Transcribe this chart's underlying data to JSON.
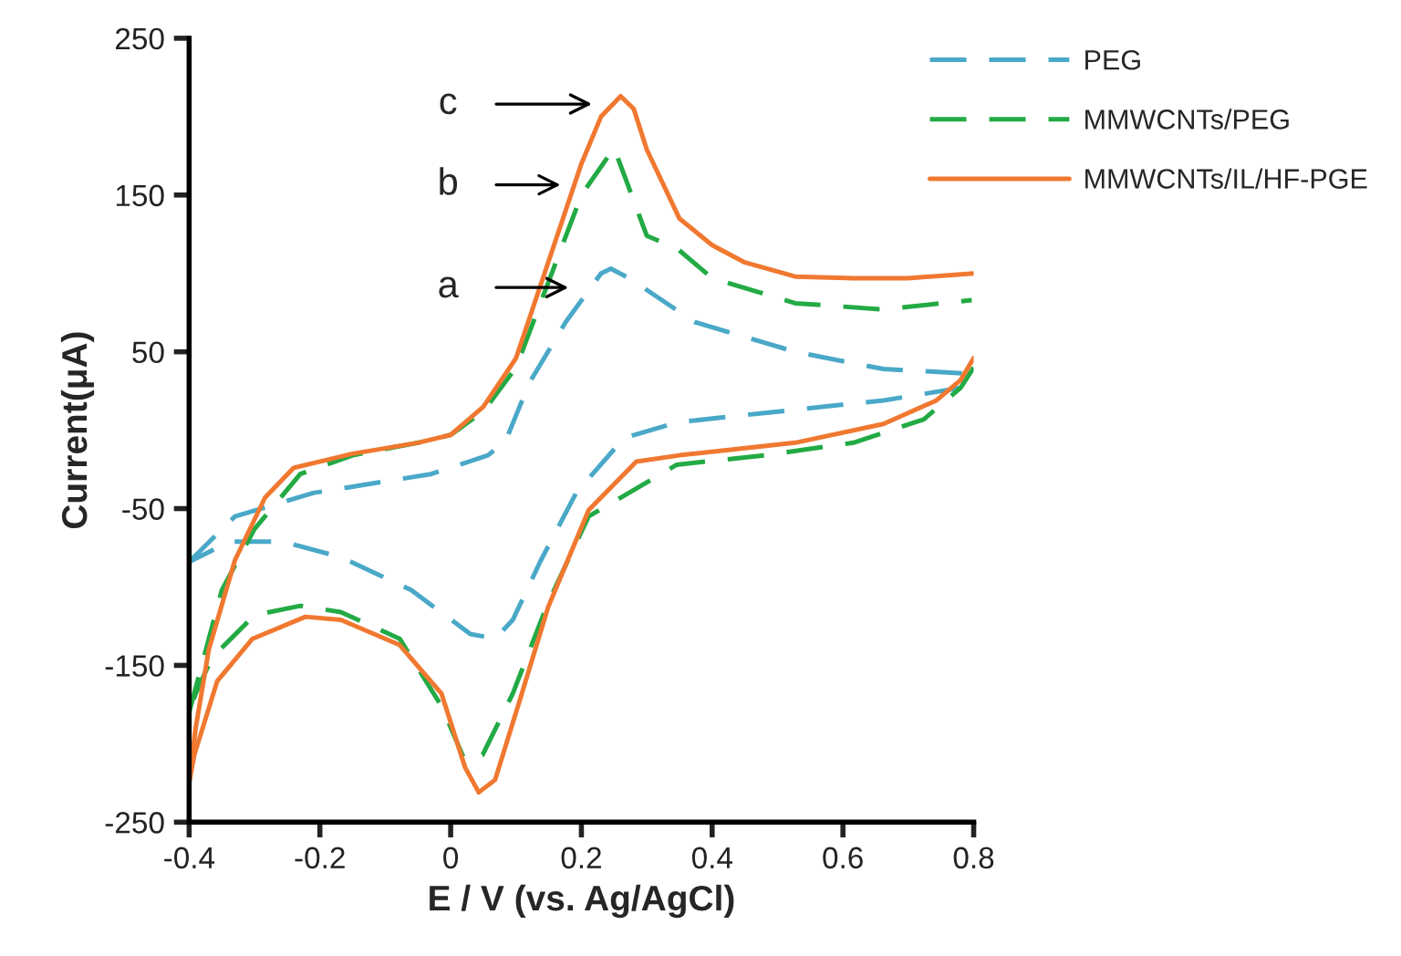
{
  "chart_data": {
    "type": "line",
    "xlabel": "E / V (vs. Ag/AgCl)",
    "ylabel": "Current(μA)",
    "xlim": [
      -0.4,
      0.8
    ],
    "xticks": [
      -0.4,
      -0.2,
      0,
      0.2,
      0.4,
      0.6,
      0.8
    ],
    "ylim": [
      -250,
      250
    ],
    "yticks": [
      -250,
      -150,
      -50,
      50,
      150,
      250
    ],
    "grid": false,
    "legend": "top right",
    "annotations": [
      "c",
      "b",
      "a"
    ],
    "series": [
      {
        "name": "PEG",
        "color": "#4aa8c8",
        "line_style": "dashed",
        "x": [
          -0.4,
          -0.33,
          -0.21,
          -0.03,
          0.057,
          0.084,
          0.12,
          0.176,
          0.23,
          0.245,
          0.273,
          0.373,
          0.527,
          0.662,
          0.797,
          0.8
        ],
        "values": [
          -84,
          -55,
          -40,
          -28,
          -16,
          -7,
          30,
          69,
          100,
          103,
          97,
          69,
          50,
          39,
          36,
          35
        ]
      },
      {
        "color": "#4aa8c8",
        "line_style": "dashed",
        "x": [
          0.78,
          0.662,
          0.48,
          0.346,
          0.265,
          0.192,
          0.138,
          0.095,
          0.068,
          0.03,
          -0.06,
          -0.168,
          -0.257,
          -0.338,
          -0.4
        ],
        "values": [
          27,
          19,
          11,
          5,
          -5,
          -40,
          -83,
          -121,
          -133,
          -130,
          -102,
          -81,
          -71,
          -71,
          -84
        ]
      },
      {
        "name": "MMWCNTs/PEG",
        "color": "#22aa44",
        "line_style": "dashed",
        "x": [
          -0.4,
          -0.35,
          -0.3,
          -0.23,
          -0.15,
          -0.05,
          0,
          0.05,
          0.1,
          0.15,
          0.2,
          0.25,
          0.3,
          0.346,
          0.4,
          0.527,
          0.662,
          0.797
        ],
        "values": [
          -180,
          -102,
          -63,
          -28,
          -16,
          -8,
          -3,
          12,
          40,
          95,
          150,
          180,
          124,
          116,
          97,
          81,
          77,
          83
        ]
      },
      {
        "color": "#22aa44",
        "line_style": "dashed",
        "x": [
          0.8,
          0.78,
          0.724,
          0.616,
          0.48,
          0.346,
          0.211,
          0.149,
          0.095,
          0.049,
          0.022,
          -0.014,
          -0.078,
          -0.168,
          -0.23,
          -0.3,
          -0.365,
          -0.39,
          -0.4
        ],
        "values": [
          40,
          27,
          7,
          -8,
          -16,
          -22,
          -55,
          -110,
          -168,
          -207,
          -211,
          -176,
          -133,
          -116,
          -112,
          -118,
          -145,
          -168,
          -180
        ]
      },
      {
        "name": "MMWCNTs/IL/HF-PGE",
        "color": "#f07830",
        "line_style": "solid",
        "x": [
          -0.4,
          -0.39,
          -0.37,
          -0.33,
          -0.284,
          -0.24,
          -0.15,
          -0.05,
          0,
          0.05,
          0.1,
          0.15,
          0.2,
          0.23,
          0.26,
          0.28,
          0.3,
          0.35,
          0.4,
          0.45,
          0.527,
          0.616,
          0.7,
          0.8
        ],
        "values": [
          -225,
          -190,
          -140,
          -83,
          -43,
          -24,
          -15,
          -8,
          -3,
          15,
          46,
          108,
          170,
          200,
          213,
          205,
          179,
          135,
          118,
          107,
          98,
          97,
          97,
          100
        ]
      },
      {
        "color": "#f07830",
        "line_style": "solid",
        "x": [
          0.8,
          0.78,
          0.743,
          0.662,
          0.527,
          0.35,
          0.284,
          0.211,
          0.149,
          0.103,
          0.068,
          0.043,
          0.022,
          -0.014,
          -0.078,
          -0.168,
          -0.222,
          -0.303,
          -0.357,
          -0.392,
          -0.4
        ],
        "values": [
          46,
          32,
          19,
          4,
          -8,
          -16,
          -20,
          -51,
          -113,
          -176,
          -223,
          -231,
          -215,
          -168,
          -137,
          -121,
          -119,
          -133,
          -160,
          -207,
          -225
        ]
      }
    ]
  }
}
